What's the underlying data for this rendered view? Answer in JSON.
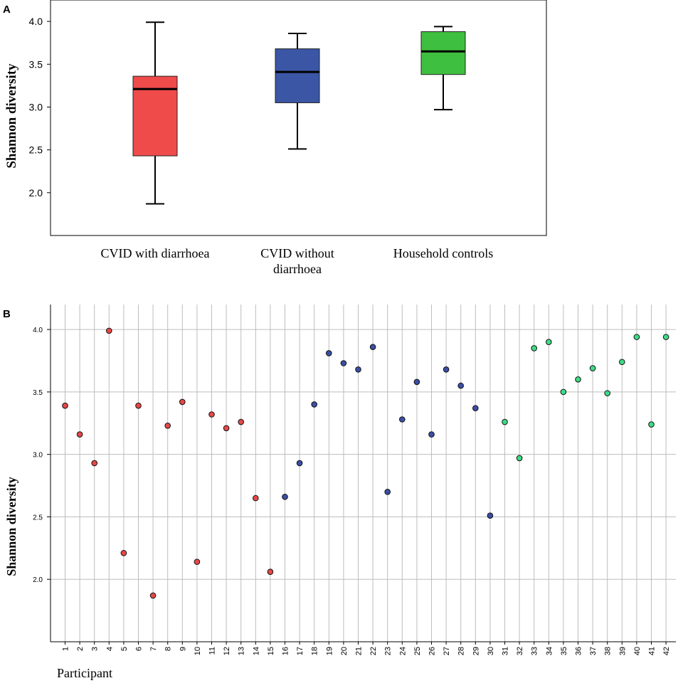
{
  "chart_data": [
    {
      "panel": "A",
      "type": "box",
      "ylabel": "Shannon diversity",
      "yticks": [
        "4.0",
        "3.5",
        "3.0",
        "2.5",
        "2.0"
      ],
      "ytick_values": [
        4.0,
        3.5,
        3.0,
        2.5,
        2.0
      ],
      "ylim": [
        1.5,
        4.25
      ],
      "groups": [
        {
          "label_lines": [
            "CVID with diarrhoea"
          ],
          "color": "#ef4b4b",
          "min": 1.87,
          "q1": 2.43,
          "median": 3.21,
          "q3": 3.36,
          "max": 3.99
        },
        {
          "label_lines": [
            "CVID without",
            "diarrhoea"
          ],
          "color": "#3b56a5",
          "min": 2.51,
          "q1": 3.05,
          "median": 3.41,
          "q3": 3.68,
          "max": 3.86
        },
        {
          "label_lines": [
            "Household controls"
          ],
          "color": "#3fbf3f",
          "min": 2.97,
          "q1": 3.38,
          "median": 3.65,
          "q3": 3.88,
          "max": 3.94
        }
      ]
    },
    {
      "panel": "B",
      "type": "scatter",
      "ylabel": "Shannon diversity",
      "xlabel": "Participant",
      "yticks": [
        "4.0",
        "3.5",
        "3.0",
        "2.5",
        "2.0"
      ],
      "ytick_values": [
        4.0,
        3.5,
        3.0,
        2.5,
        2.0
      ],
      "ylim": [
        1.5,
        4.2
      ],
      "group_colors": {
        "red": "#e64848",
        "blue": "#3b4fa6",
        "green": "#3ddc84"
      },
      "points": [
        {
          "x": "1",
          "y": 3.39,
          "group": "red"
        },
        {
          "x": "2",
          "y": 3.16,
          "group": "red"
        },
        {
          "x": "3",
          "y": 2.93,
          "group": "red"
        },
        {
          "x": "4",
          "y": 3.99,
          "group": "red"
        },
        {
          "x": "5",
          "y": 2.21,
          "group": "red"
        },
        {
          "x": "6",
          "y": 3.39,
          "group": "red"
        },
        {
          "x": "7",
          "y": 1.87,
          "group": "red"
        },
        {
          "x": "8",
          "y": 3.23,
          "group": "red"
        },
        {
          "x": "9",
          "y": 3.42,
          "group": "red"
        },
        {
          "x": "10",
          "y": 2.14,
          "group": "red"
        },
        {
          "x": "11",
          "y": 3.32,
          "group": "red"
        },
        {
          "x": "12",
          "y": 3.21,
          "group": "red"
        },
        {
          "x": "13",
          "y": 3.26,
          "group": "red"
        },
        {
          "x": "14",
          "y": 2.65,
          "group": "red"
        },
        {
          "x": "15",
          "y": 2.06,
          "group": "red"
        },
        {
          "x": "16",
          "y": 2.66,
          "group": "blue"
        },
        {
          "x": "17",
          "y": 2.93,
          "group": "blue"
        },
        {
          "x": "18",
          "y": 3.4,
          "group": "blue"
        },
        {
          "x": "19",
          "y": 3.81,
          "group": "blue"
        },
        {
          "x": "20",
          "y": 3.73,
          "group": "blue"
        },
        {
          "x": "21",
          "y": 3.68,
          "group": "blue"
        },
        {
          "x": "22",
          "y": 3.86,
          "group": "blue"
        },
        {
          "x": "23",
          "y": 2.7,
          "group": "blue"
        },
        {
          "x": "24",
          "y": 3.28,
          "group": "blue"
        },
        {
          "x": "25",
          "y": 3.58,
          "group": "blue"
        },
        {
          "x": "26",
          "y": 3.16,
          "group": "blue"
        },
        {
          "x": "27",
          "y": 3.68,
          "group": "blue"
        },
        {
          "x": "28",
          "y": 3.55,
          "group": "blue"
        },
        {
          "x": "29",
          "y": 3.37,
          "group": "blue"
        },
        {
          "x": "30",
          "y": 2.51,
          "group": "blue"
        },
        {
          "x": "31",
          "y": 3.26,
          "group": "green"
        },
        {
          "x": "32",
          "y": 2.97,
          "group": "green"
        },
        {
          "x": "33",
          "y": 3.85,
          "group": "green"
        },
        {
          "x": "34",
          "y": 3.9,
          "group": "green"
        },
        {
          "x": "35",
          "y": 3.5,
          "group": "green"
        },
        {
          "x": "36",
          "y": 3.6,
          "group": "green"
        },
        {
          "x": "37",
          "y": 3.69,
          "group": "green"
        },
        {
          "x": "38",
          "y": 3.49,
          "group": "green"
        },
        {
          "x": "39",
          "y": 3.74,
          "group": "green"
        },
        {
          "x": "40",
          "y": 3.94,
          "group": "green"
        },
        {
          "x": "41",
          "y": 3.24,
          "group": "green"
        },
        {
          "x": "42",
          "y": 3.94,
          "group": "green"
        }
      ]
    }
  ]
}
